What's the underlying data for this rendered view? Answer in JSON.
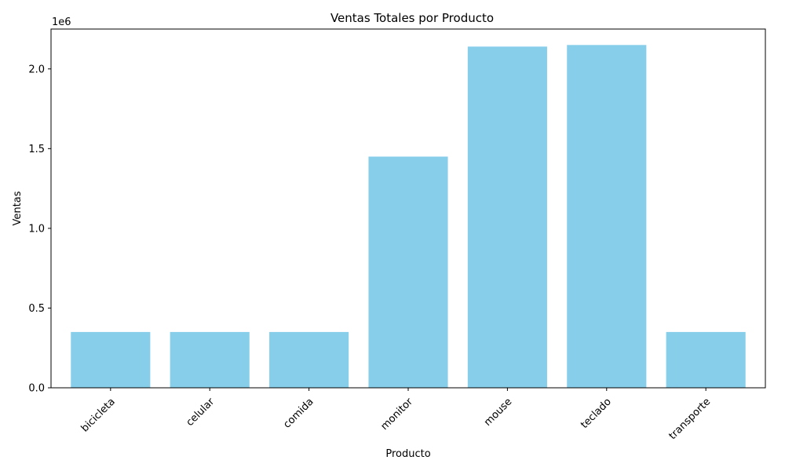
{
  "chart_data": {
    "type": "bar",
    "title": "Ventas Totales por Producto",
    "xlabel": "Producto",
    "ylabel": "Ventas",
    "offset_label": "1e6",
    "categories": [
      "bicicleta",
      "celular",
      "comida",
      "monitor",
      "mouse",
      "teclado",
      "transporte"
    ],
    "values": [
      350000,
      350000,
      350000,
      1450000,
      2140000,
      2150000,
      350000
    ],
    "ylim": [
      0,
      2250000
    ],
    "yticks": [
      0,
      500000,
      1000000,
      1500000,
      2000000
    ],
    "ytick_labels": [
      "0.0",
      "0.5",
      "1.0",
      "1.5",
      "2.0"
    ],
    "bar_color": "#87ceeb",
    "grid": false,
    "legend": "none"
  }
}
